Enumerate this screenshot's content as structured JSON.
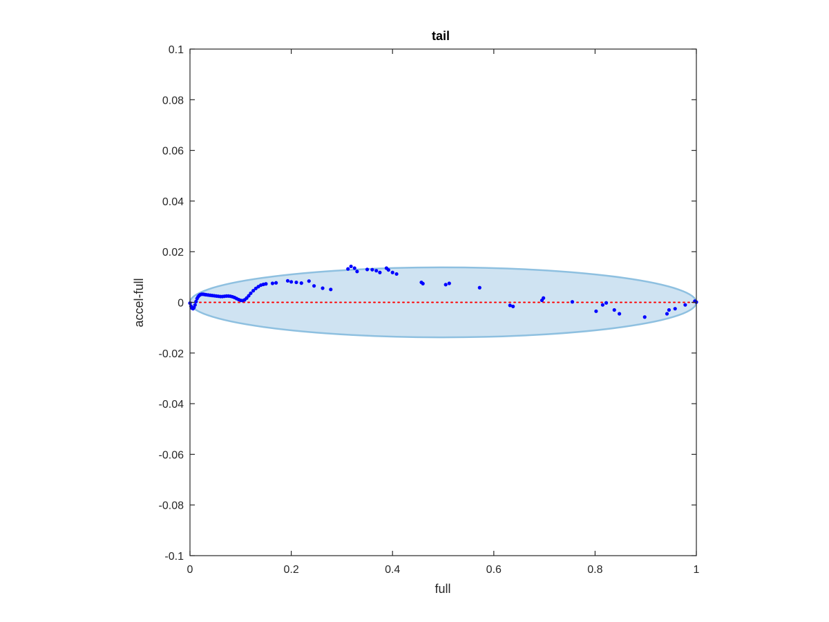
{
  "chart_data": {
    "type": "scatter",
    "title": "tail",
    "xlabel": "full",
    "ylabel": "accel-full",
    "xlim": [
      0,
      1
    ],
    "ylim": [
      -0.1,
      0.1
    ],
    "xticks": [
      "0",
      "0.2",
      "0.4",
      "0.6",
      "0.8",
      "1"
    ],
    "xtick_values": [
      0,
      0.2,
      0.4,
      0.6,
      0.8,
      1
    ],
    "yticks": [
      "-0.1",
      "-0.08",
      "-0.06",
      "-0.04",
      "-0.02",
      "0",
      "0.02",
      "0.04",
      "0.06",
      "0.08",
      "0.1"
    ],
    "ytick_values": [
      -0.1,
      -0.08,
      -0.06,
      -0.04,
      -0.02,
      0,
      0.02,
      0.04,
      0.06,
      0.08,
      0.1
    ],
    "grid": false,
    "colors": {
      "points": "#0000ff",
      "zero_line": "#ff0000",
      "ellipse_fill": "#cfe3f2",
      "ellipse_stroke": "#8ec0e0",
      "axis": "#262626"
    },
    "ellipse": {
      "cx": 0.5,
      "cy": 0,
      "rx": 0.5,
      "ry": 0.0138
    },
    "reference_line": {
      "y": 0,
      "style": "dotted"
    },
    "series": [
      {
        "x": [
          0.0,
          0.002,
          0.004,
          0.006,
          0.008,
          0.01,
          0.012,
          0.014,
          0.016,
          0.018,
          0.02,
          0.023,
          0.026,
          0.029,
          0.032,
          0.036,
          0.04,
          0.044,
          0.048,
          0.052,
          0.056,
          0.06,
          0.064,
          0.068,
          0.072,
          0.076,
          0.08,
          0.084,
          0.088,
          0.092,
          0.096,
          0.1,
          0.104,
          0.108,
          0.112,
          0.116,
          0.12,
          0.125,
          0.13,
          0.135,
          0.14,
          0.145,
          0.15,
          0.163,
          0.17,
          0.193,
          0.2,
          0.21,
          0.22,
          0.235,
          0.245,
          0.262,
          0.278,
          0.312,
          0.318,
          0.325,
          0.33,
          0.35,
          0.36,
          0.368,
          0.375,
          0.388,
          0.392,
          0.4,
          0.408,
          0.457,
          0.46,
          0.505,
          0.512,
          0.572,
          0.632,
          0.638,
          0.695,
          0.698,
          0.755,
          0.802,
          0.815,
          0.822,
          0.838,
          0.848,
          0.898,
          0.942,
          0.946,
          0.958,
          0.978,
          0.997,
          1.0
        ],
        "y": [
          -0.0003,
          -0.0015,
          -0.0023,
          -0.0025,
          -0.002,
          -0.001,
          0.0003,
          0.0015,
          0.0022,
          0.0027,
          0.003,
          0.0032,
          0.0032,
          0.0031,
          0.003,
          0.0029,
          0.0028,
          0.0027,
          0.0026,
          0.0025,
          0.0024,
          0.0023,
          0.0023,
          0.0024,
          0.0025,
          0.0025,
          0.0024,
          0.0022,
          0.0019,
          0.0015,
          0.0011,
          0.0008,
          0.0007,
          0.001,
          0.0017,
          0.0026,
          0.0036,
          0.0046,
          0.0055,
          0.0062,
          0.0068,
          0.0071,
          0.0073,
          0.0075,
          0.0077,
          0.0085,
          0.0081,
          0.0079,
          0.0076,
          0.0084,
          0.0065,
          0.0056,
          0.0051,
          0.0132,
          0.0142,
          0.0135,
          0.0122,
          0.013,
          0.0129,
          0.0125,
          0.0118,
          0.0135,
          0.0128,
          0.0118,
          0.0112,
          0.0079,
          0.0074,
          0.007,
          0.0075,
          0.0058,
          -0.0012,
          -0.0016,
          0.0008,
          0.0017,
          0.0002,
          -0.0035,
          -0.001,
          -0.0002,
          -0.003,
          -0.0045,
          -0.0058,
          -0.0045,
          -0.003,
          -0.0025,
          -0.001,
          0.0005,
          0.0001
        ]
      }
    ]
  }
}
